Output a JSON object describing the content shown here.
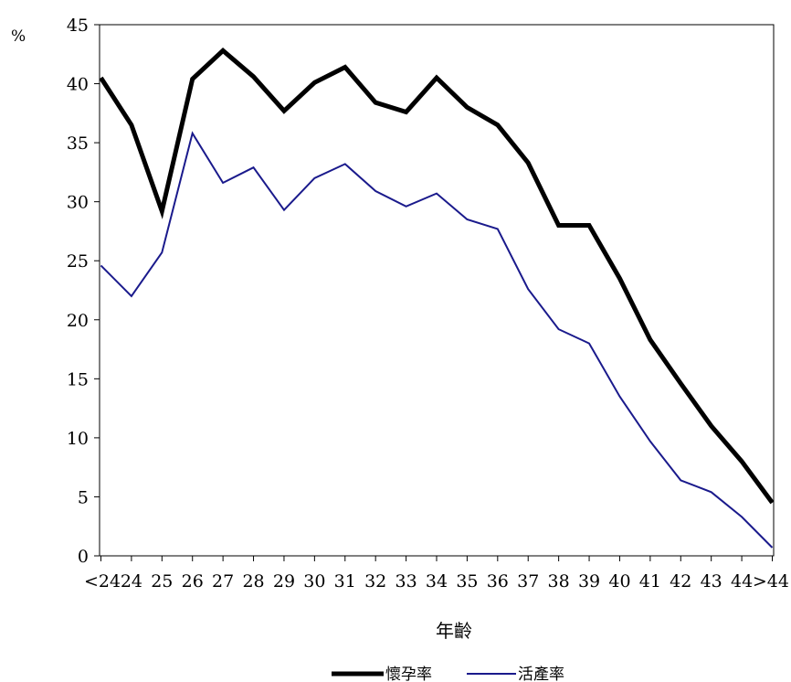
{
  "chart_data": {
    "type": "line",
    "title": "",
    "xlabel": "年齡",
    "ylabel": "%",
    "ylim": [
      0,
      45
    ],
    "yticks": [
      "0",
      "5",
      "10",
      "15",
      "20",
      "25",
      "30",
      "35",
      "40",
      "45"
    ],
    "grid": false,
    "legend_position": "bottom-center",
    "categories": [
      "<24",
      "24",
      "25",
      "26",
      "27",
      "28",
      "29",
      "30",
      "31",
      "32",
      "33",
      "34",
      "35",
      "36",
      "37",
      "38",
      "39",
      "40",
      "41",
      "42",
      "43",
      "44",
      ">44"
    ],
    "series": [
      {
        "name": "懷孕率",
        "color": "#000000",
        "values": [
          40.5,
          36.5,
          29.2,
          40.4,
          42.8,
          40.6,
          37.7,
          40.1,
          41.4,
          38.4,
          37.6,
          40.5,
          38.0,
          36.5,
          33.3,
          28.0,
          28.0,
          23.5,
          18.3,
          14.6,
          11.0,
          8.0,
          4.5
        ]
      },
      {
        "name": "活產率",
        "color": "#1a1a8c",
        "values": [
          24.6,
          22.0,
          25.7,
          35.8,
          31.6,
          32.9,
          29.3,
          32.0,
          33.2,
          30.9,
          29.6,
          30.7,
          28.5,
          27.7,
          22.6,
          19.2,
          18.0,
          13.5,
          9.7,
          6.4,
          5.4,
          3.3,
          0.7
        ]
      }
    ]
  }
}
